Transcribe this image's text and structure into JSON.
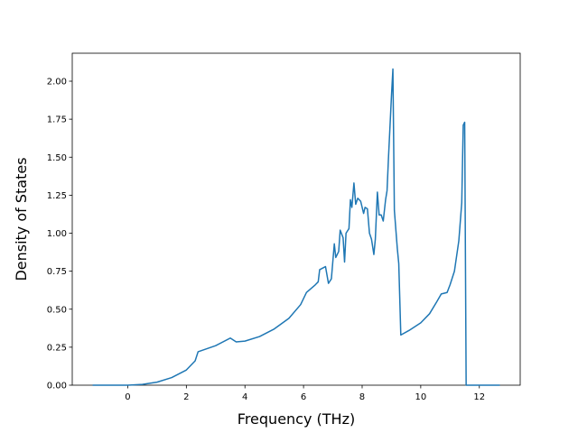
{
  "chart_data": {
    "type": "line",
    "xlabel": "Frequency (THz)",
    "ylabel": "Density of States",
    "x": [
      -1.2,
      0,
      0.5,
      1.0,
      1.5,
      2.0,
      2.3,
      2.4,
      3.0,
      3.5,
      3.7,
      4.0,
      4.5,
      5.0,
      5.5,
      5.9,
      6.1,
      6.4,
      6.5,
      6.55,
      6.75,
      6.85,
      6.95,
      7.05,
      7.1,
      7.2,
      7.25,
      7.35,
      7.4,
      7.45,
      7.55,
      7.6,
      7.65,
      7.72,
      7.78,
      7.85,
      7.95,
      8.05,
      8.1,
      8.18,
      8.25,
      8.32,
      8.4,
      8.45,
      8.52,
      8.58,
      8.65,
      8.72,
      8.8,
      8.85,
      8.9,
      9.0,
      9.05,
      9.1,
      9.2,
      9.25,
      9.32,
      9.6,
      10.0,
      10.3,
      10.55,
      10.7,
      10.9,
      11.0,
      11.15,
      11.3,
      11.4,
      11.45,
      11.5,
      11.55,
      12.7
    ],
    "series": [
      {
        "color": "#1f77b4",
        "values": [
          0,
          0,
          0.005,
          0.02,
          0.05,
          0.1,
          0.16,
          0.22,
          0.26,
          0.31,
          0.285,
          0.29,
          0.32,
          0.37,
          0.44,
          0.53,
          0.61,
          0.66,
          0.68,
          0.76,
          0.78,
          0.67,
          0.7,
          0.93,
          0.84,
          0.88,
          1.02,
          0.97,
          0.81,
          1.0,
          1.03,
          1.22,
          1.17,
          1.33,
          1.19,
          1.23,
          1.21,
          1.13,
          1.17,
          1.16,
          1.0,
          0.96,
          0.86,
          0.96,
          1.27,
          1.12,
          1.12,
          1.08,
          1.22,
          1.28,
          1.5,
          1.9,
          2.08,
          1.15,
          0.9,
          0.8,
          0.33,
          0.36,
          0.41,
          0.47,
          0.55,
          0.6,
          0.61,
          0.66,
          0.75,
          0.95,
          1.2,
          1.71,
          1.73,
          0,
          0
        ]
      }
    ],
    "xlim": [
      -1.895,
      13.395
    ],
    "xticks": [
      0,
      2,
      4,
      6,
      8,
      10,
      12
    ],
    "ylim": [
      0,
      2.184
    ],
    "yticks": [
      {
        "value": 0,
        "label": "0.00"
      },
      {
        "value": 0.25,
        "label": "0.25"
      },
      {
        "value": 0.5,
        "label": "0.50"
      },
      {
        "value": 0.75,
        "label": "0.75"
      },
      {
        "value": 1.0,
        "label": "1.00"
      },
      {
        "value": 1.25,
        "label": "1.25"
      },
      {
        "value": 1.5,
        "label": "1.50"
      },
      {
        "value": 1.75,
        "label": "1.75"
      },
      {
        "value": 2.0,
        "label": "2.00"
      }
    ]
  }
}
